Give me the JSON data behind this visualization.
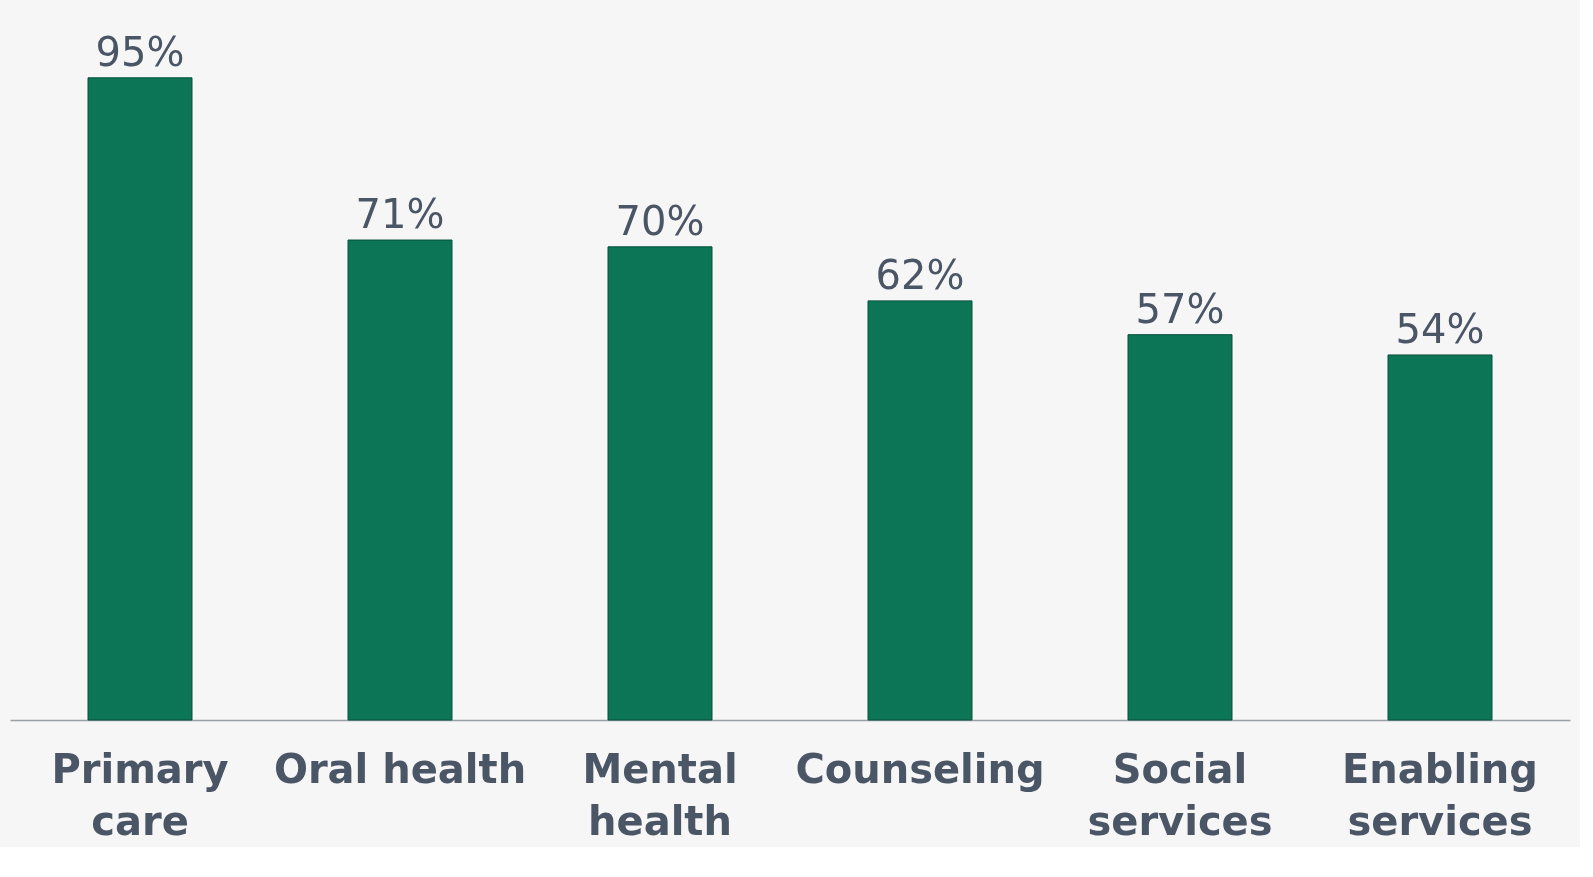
{
  "chart_data": {
    "type": "bar",
    "categories": [
      "Primary care",
      "Oral health",
      "Mental health",
      "Counseling",
      "Social services",
      "Enabling services"
    ],
    "values": [
      95,
      71,
      70,
      62,
      57,
      54
    ],
    "value_labels": [
      "95%",
      "71%",
      "70%",
      "62%",
      "57%",
      "54%"
    ],
    "color": "#0b7555"
  }
}
